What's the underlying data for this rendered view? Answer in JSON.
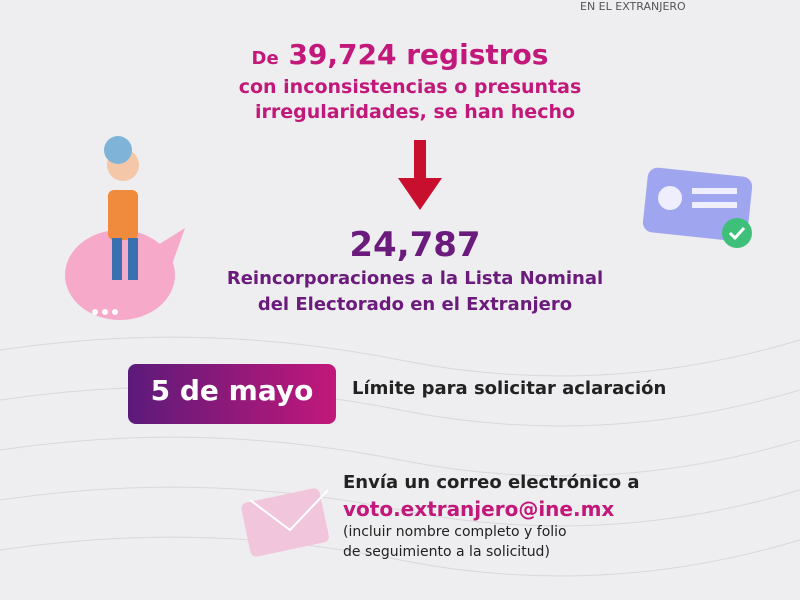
{
  "header": {
    "brand": "EN EL EXTRANJERO"
  },
  "intro": {
    "prefix": "De",
    "number": "39,724 registros",
    "line2": "con inconsistencias o presuntas",
    "line3": "irregularidades, se han hecho"
  },
  "result": {
    "number": "24,787",
    "line1": "Reincorporaciones a la Lista Nominal",
    "line2": "del Electorado en el Extranjero"
  },
  "deadline": {
    "date": "5 de mayo",
    "text": "Límite para solicitar aclaración"
  },
  "contact": {
    "line1": "Envía un correo electrónico a",
    "email": "voto.extranjero@ine.mx",
    "note1": "(incluir nombre completo y folio",
    "note2": "de seguimiento a la solicitud)"
  }
}
